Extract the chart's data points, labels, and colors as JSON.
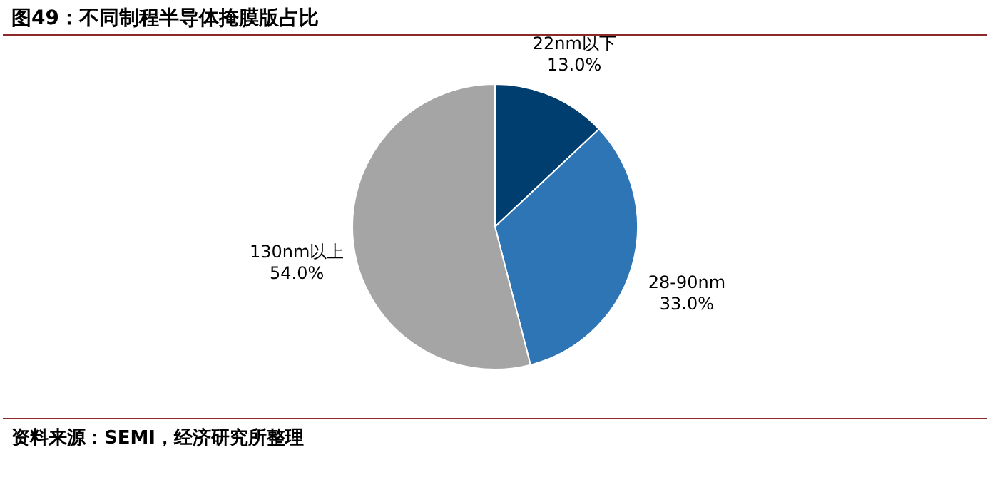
{
  "chart_data": {
    "type": "pie",
    "title": "图49：不同制程半导体掩膜版占比",
    "categories": [
      "22nm以下",
      "28-90nm",
      "130nm以上"
    ],
    "values": [
      13.0,
      33.0,
      54.0
    ],
    "value_labels": [
      "13.0%",
      "33.0%",
      "54.0%"
    ],
    "colors": [
      "#003e70",
      "#2e75b6",
      "#a5a5a5"
    ],
    "annotations": [
      "资料来源：SEMI，经济研究所整理"
    ]
  }
}
